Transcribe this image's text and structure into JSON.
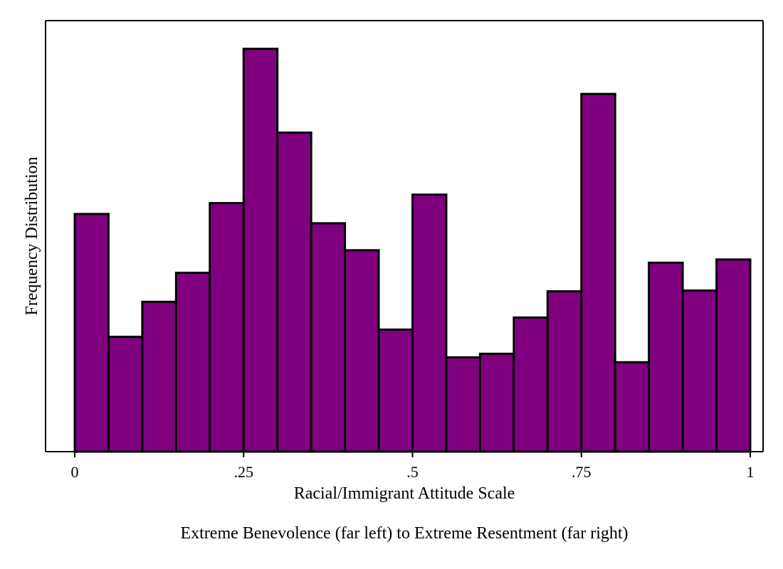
{
  "chart_data": {
    "type": "bar",
    "subtype": "histogram",
    "title": "",
    "xlabel": "Racial/Immigrant Attitude Scale",
    "ylabel": "Frequency Distribution",
    "note": "Extreme Benevolence (far left) to Extreme Resentment (far right)",
    "xlim": [
      0,
      1
    ],
    "ylim": [
      0,
      1.07
    ],
    "x_ticks": [
      {
        "value": 0,
        "label": "0"
      },
      {
        "value": 0.25,
        "label": ".25"
      },
      {
        "value": 0.5,
        "label": ".5"
      },
      {
        "value": 0.75,
        "label": ".75"
      },
      {
        "value": 1,
        "label": "1"
      }
    ],
    "y_tick_labels_shown": false,
    "grid": false,
    "legend": "none",
    "bin_edges": [
      0,
      0.05,
      0.1,
      0.15,
      0.2,
      0.25,
      0.3,
      0.35,
      0.4,
      0.45,
      0.5,
      0.55,
      0.6,
      0.65,
      0.7,
      0.75,
      0.8,
      0.85,
      0.9,
      0.95,
      1.0
    ],
    "values": [
      0.59,
      0.285,
      0.372,
      0.444,
      0.617,
      1.0,
      0.792,
      0.567,
      0.5,
      0.303,
      0.638,
      0.234,
      0.243,
      0.333,
      0.398,
      0.888,
      0.222,
      0.469,
      0.4,
      0.477
    ],
    "value_units": "relative frequency (tallest bin = 1)",
    "colors": {
      "bar_fill": "#800080",
      "bar_outline": "#000000",
      "axis": "#000000",
      "background": "#ffffff"
    }
  }
}
